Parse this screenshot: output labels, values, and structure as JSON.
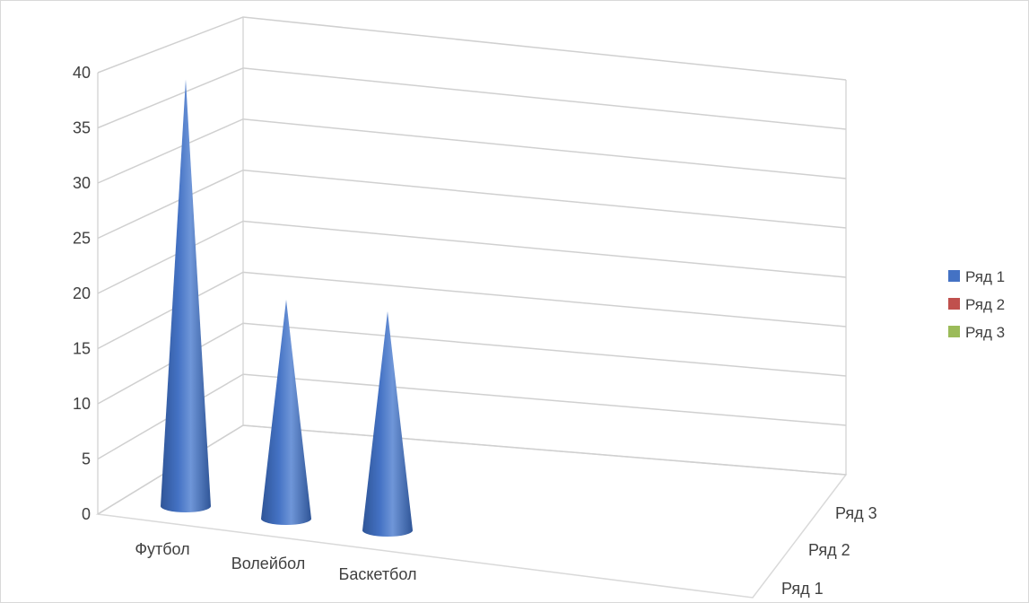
{
  "chart_data": {
    "type": "bar",
    "variant": "3d-cone",
    "categories": [
      "Футбол",
      "Волейбол",
      "Баскетбол"
    ],
    "series": [
      {
        "name": "Ряд 1",
        "values": [
          39,
          20,
          20
        ],
        "color": "#4472C4"
      },
      {
        "name": "Ряд 2",
        "values": [
          0,
          0,
          0
        ],
        "color": "#C0504D"
      },
      {
        "name": "Ряд 3",
        "values": [
          0,
          0,
          0
        ],
        "color": "#9BBB59"
      }
    ],
    "y_ticks": [
      "0",
      "5",
      "10",
      "15",
      "20",
      "25",
      "30",
      "35",
      "40"
    ],
    "depth_labels": [
      "Ряд 1",
      "Ряд 2",
      "Ряд 3"
    ],
    "ylim": [
      0,
      40
    ],
    "grid": true,
    "legend_position": "right",
    "title": "",
    "xlabel": "",
    "ylabel": ""
  }
}
